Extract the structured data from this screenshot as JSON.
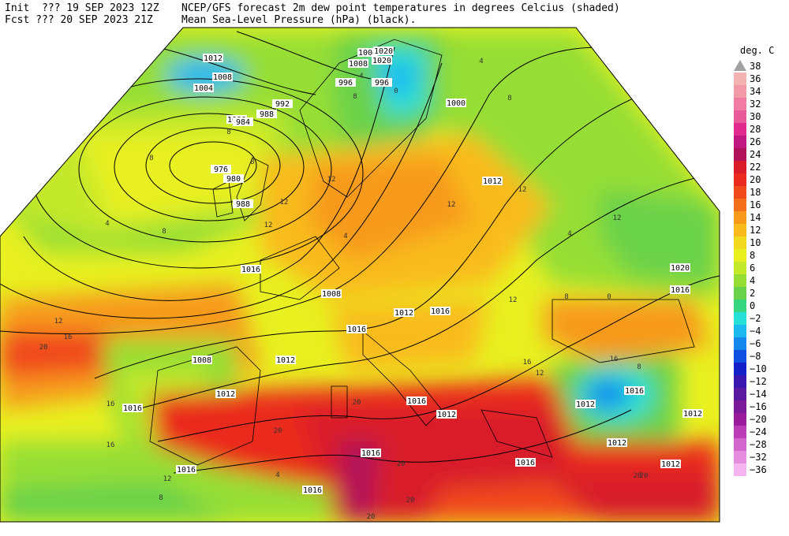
{
  "header": {
    "init_line": "Init  ??? 19 SEP 2023 12Z",
    "fcst_line": "Fcst ??? 20 SEP 2023 21Z",
    "title_line1": "NCEP/GFS forecast 2m dew point temperatures in degrees Celcius (shaded)",
    "title_line2": "Mean Sea-Level Pressure (hPa) (black)."
  },
  "legend": {
    "unit": "deg. C",
    "items": [
      {
        "label": "38",
        "color": "#a0a0a0"
      },
      {
        "label": "36",
        "color": "#f4b3b3"
      },
      {
        "label": "34",
        "color": "#f29aa8"
      },
      {
        "label": "32",
        "color": "#f07ca4"
      },
      {
        "label": "30",
        "color": "#e95a9b"
      },
      {
        "label": "28",
        "color": "#e02a8d"
      },
      {
        "label": "26",
        "color": "#c01880"
      },
      {
        "label": "24",
        "color": "#b0125a"
      },
      {
        "label": "22",
        "color": "#d81c2a"
      },
      {
        "label": "20",
        "color": "#ea2a1e"
      },
      {
        "label": "18",
        "color": "#f04a1c"
      },
      {
        "label": "16",
        "color": "#f4701a"
      },
      {
        "label": "14",
        "color": "#f79a1a"
      },
      {
        "label": "12",
        "color": "#f9bb1c"
      },
      {
        "label": "10",
        "color": "#f3d91e"
      },
      {
        "label": "8",
        "color": "#e8f020"
      },
      {
        "label": "6",
        "color": "#c4e92a"
      },
      {
        "label": "4",
        "color": "#96de34"
      },
      {
        "label": "2",
        "color": "#6ad24a"
      },
      {
        "label": "0",
        "color": "#36d680"
      },
      {
        "label": "−2",
        "color": "#26e0d8"
      },
      {
        "label": "−4",
        "color": "#1cb8f0"
      },
      {
        "label": "−6",
        "color": "#1488ec"
      },
      {
        "label": "−8",
        "color": "#1050e0"
      },
      {
        "label": "−10",
        "color": "#1420c8"
      },
      {
        "label": "−12",
        "color": "#3a18b0"
      },
      {
        "label": "−14",
        "color": "#5a1aa0"
      },
      {
        "label": "−16",
        "color": "#7a1a98"
      },
      {
        "label": "−20",
        "color": "#9a1c9c"
      },
      {
        "label": "−24",
        "color": "#bc3cb8"
      },
      {
        "label": "−28",
        "color": "#d266cc"
      },
      {
        "label": "−32",
        "color": "#e58ee0"
      },
      {
        "label": "−36",
        "color": "#f3b4f0"
      }
    ]
  },
  "map": {
    "pressure_labels": [
      "1012",
      "1008",
      "1004",
      "1000",
      "996",
      "992",
      "988",
      "984",
      "976",
      "980",
      "988",
      "1008",
      "1004",
      "1000",
      "996",
      "1012",
      "1008",
      "1012",
      "1016",
      "1012",
      "1016",
      "1020",
      "1016",
      "1016",
      "1012",
      "1016",
      "1012",
      "1008",
      "1012",
      "1016",
      "1016",
      "1016",
      "1016",
      "1012",
      "1012",
      "1016",
      "1012",
      "1020",
      "1020",
      "1016"
    ],
    "dewpoint_labels": [
      "4",
      "0",
      "4",
      "8",
      "8",
      "8",
      "12",
      "12",
      "12",
      "12",
      "16",
      "20",
      "20",
      "20",
      "16",
      "12",
      "8",
      "4",
      "8",
      "12",
      "16",
      "20",
      "20",
      "20",
      "4",
      "0",
      "8",
      "12",
      "16",
      "12",
      "8",
      "4",
      "8",
      "4",
      "20",
      "12",
      "16",
      "20",
      "12",
      "8"
    ]
  }
}
